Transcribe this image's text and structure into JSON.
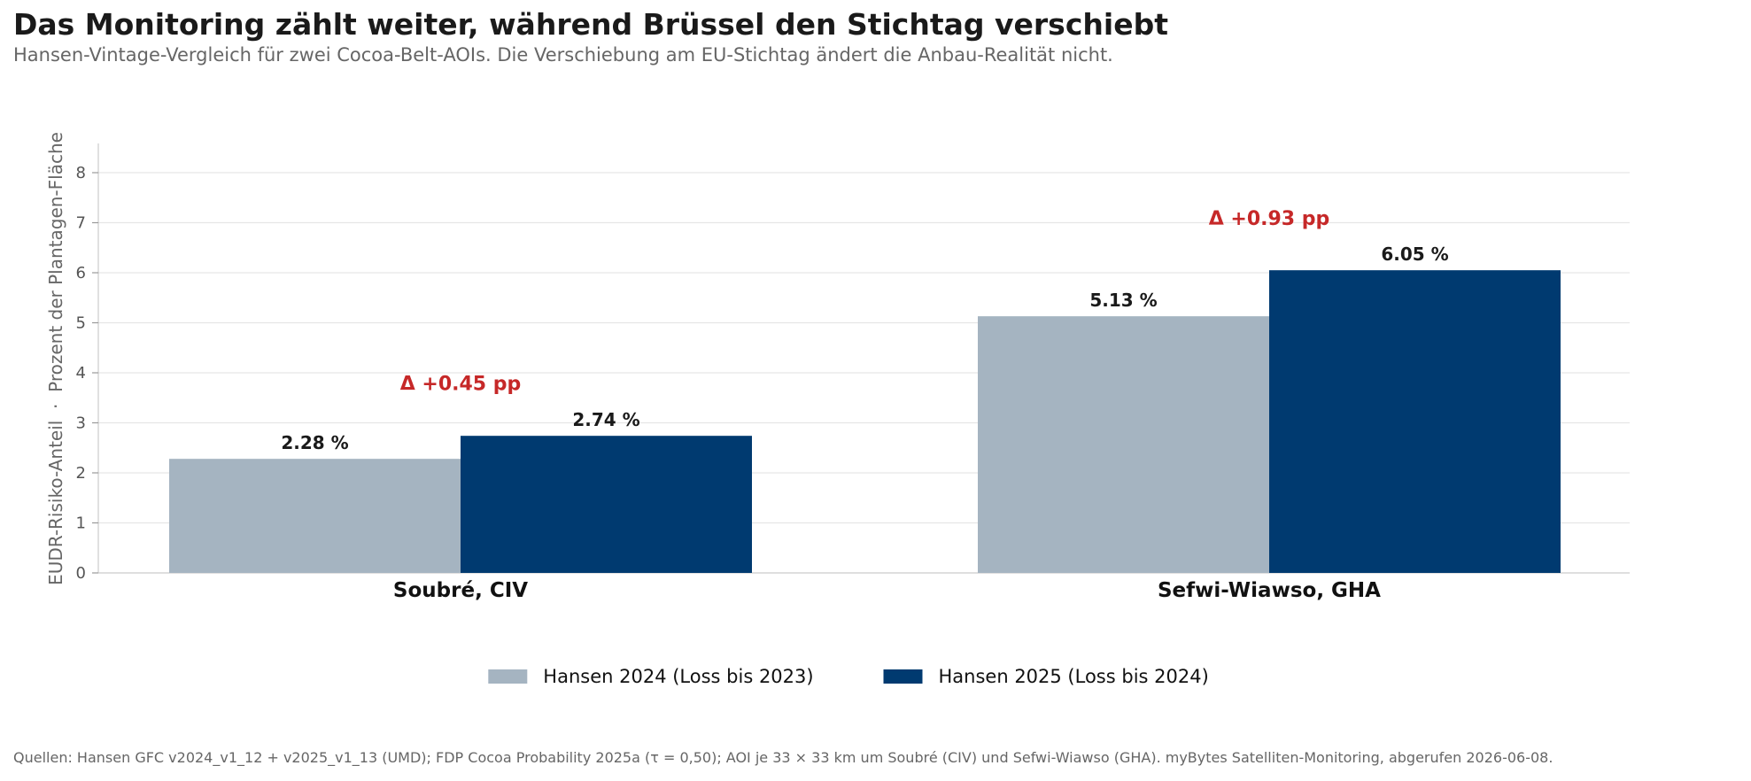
{
  "header": {
    "title": "Das Monitoring zählt weiter, während Brüssel den Stichtag verschiebt",
    "subtitle": "Hansen-Vintage-Vergleich für zwei Cocoa-Belt-AOIs. Die Verschiebung am EU-Stichtag ändert die Anbau-Realität nicht."
  },
  "footer": {
    "source": "Quellen: Hansen GFC v2024_v1_12 + v2025_v1_13 (UMD);  FDP Cocoa Probability 2025a (τ = 0,50);  AOI je 33 × 33 km um Soubré (CIV) und Sefwi-Wiawso (GHA).  myBytes Satelliten-Monitoring, abgerufen 2026-06-08."
  },
  "chart_data": {
    "type": "bar",
    "title": "Das Monitoring zählt weiter, während Brüssel den Stichtag verschiebt",
    "subtitle": "Hansen-Vintage-Vergleich für zwei Cocoa-Belt-AOIs. Die Verschiebung am EU-Stichtag ändert die Anbau-Realität nicht.",
    "xlabel": "",
    "ylabel": "EUDR-Risiko-Anteil  ·  Prozent der Plantagen-Fläche",
    "categories": [
      "Soubré, CIV",
      "Sefwi-Wiawso, GHA"
    ],
    "series": [
      {
        "name": "Hansen 2024 (Loss bis 2023)",
        "color": "#a5b4c1",
        "values": [
          2.28,
          5.13
        ],
        "labels": [
          "2.28 %",
          "5.13 %"
        ]
      },
      {
        "name": "Hansen 2025 (Loss bis 2024)",
        "color": "#003a70",
        "values": [
          2.74,
          6.05
        ],
        "labels": [
          "2.74 %",
          "6.05 %"
        ]
      }
    ],
    "annotations": [
      {
        "category": "Soubré, CIV",
        "text": "Δ +0.45 pp",
        "y": 3.8,
        "color": "#c62828"
      },
      {
        "category": "Sefwi-Wiawso, GHA",
        "text": "Δ +0.93 pp",
        "y": 7.1,
        "color": "#c62828"
      }
    ],
    "ylim": [
      0,
      8.6
    ],
    "yticks": [
      0,
      1,
      2,
      3,
      4,
      5,
      6,
      7,
      8
    ],
    "grid": true,
    "legend_position": "bottom-center"
  }
}
